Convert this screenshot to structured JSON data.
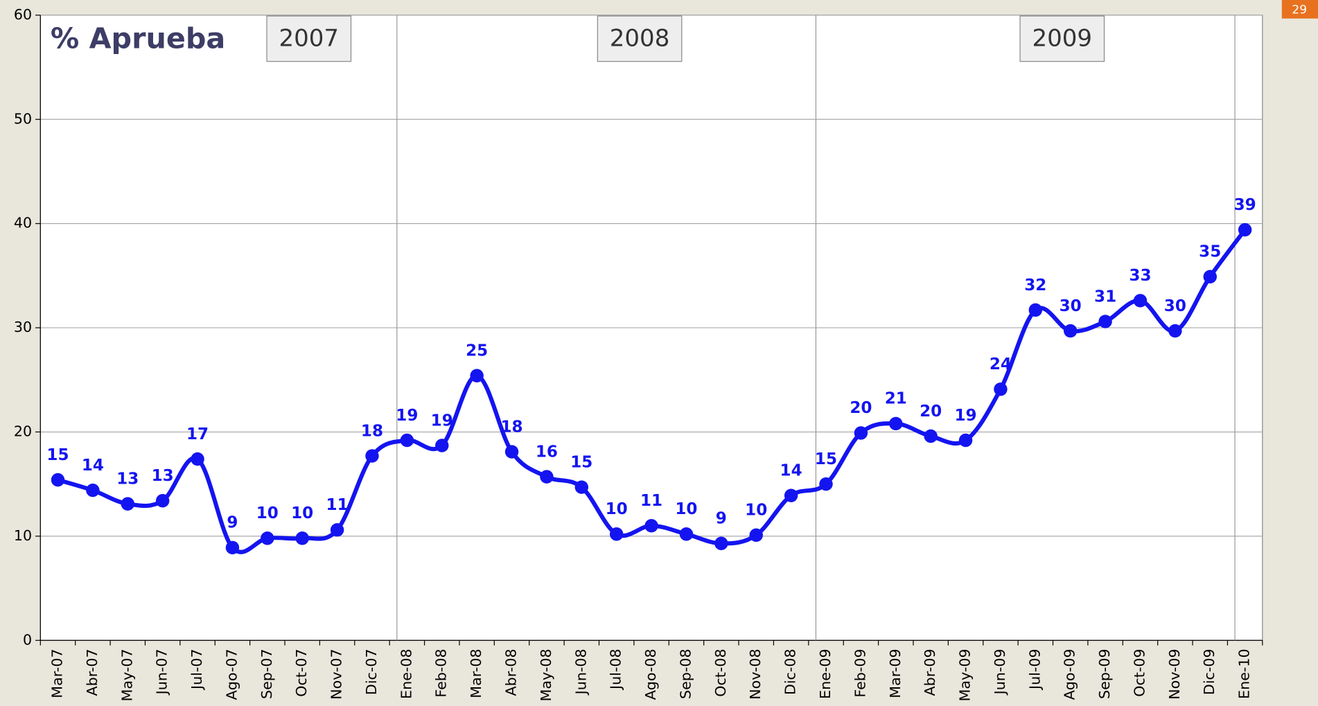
{
  "page_number": "29",
  "chart_data": {
    "type": "line",
    "title": "% Aprueba",
    "annotations": [
      "2007",
      "2008",
      "2009"
    ],
    "categories": [
      "Mar-07",
      "Abr-07",
      "May-07",
      "Jun-07",
      "Jul-07",
      "Ago-07",
      "Sep-07",
      "Oct-07",
      "Nov-07",
      "Dic-07",
      "Ene-08",
      "Feb-08",
      "Mar-08",
      "Abr-08",
      "May-08",
      "Jun-08",
      "Jul-08",
      "Ago-08",
      "Sep-08",
      "Oct-08",
      "Nov-08",
      "Dic-08",
      "Ene-09",
      "Feb-09",
      "Mar-09",
      "Abr-09",
      "May-09",
      "Jun-09",
      "Jul-09",
      "Ago-09",
      "Sep-09",
      "Oct-09",
      "Nov-09",
      "Dic-09",
      "Ene-10"
    ],
    "series": [
      {
        "name": "% Aprueba",
        "color": "#1414f0",
        "values": [
          15.4,
          14.4,
          13.1,
          13.4,
          17.4,
          8.9,
          9.8,
          9.8,
          10.6,
          17.7,
          19.2,
          18.7,
          25.4,
          18.1,
          15.7,
          14.7,
          10.2,
          11.0,
          10.2,
          9.3,
          10.1,
          13.9,
          15.0,
          19.9,
          20.8,
          19.6,
          19.2,
          24.1,
          31.7,
          29.7,
          30.6,
          32.6,
          29.7,
          34.9,
          39.4
        ],
        "value_labels": [
          "15",
          "14",
          "13",
          "13",
          "17",
          "9",
          "10",
          "10",
          "11",
          "18",
          "19",
          "19",
          "25",
          "18",
          "16",
          "15",
          "10",
          "11",
          "10",
          "9",
          "10",
          "14",
          "15",
          "20",
          "21",
          "20",
          "19",
          "24",
          "32",
          "30",
          "31",
          "33",
          "30",
          "35",
          "39"
        ]
      }
    ],
    "ylim": [
      0,
      60
    ],
    "yticks": [
      0,
      10,
      20,
      30,
      40,
      50,
      60
    ],
    "grid": true
  }
}
